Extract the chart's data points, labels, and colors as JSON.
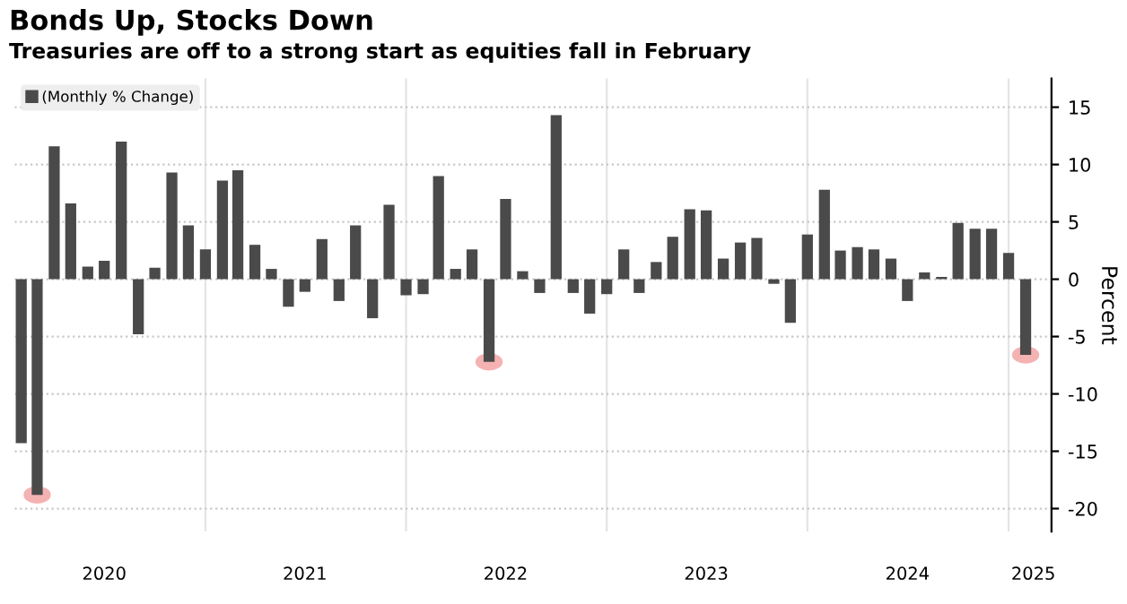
{
  "chart_data": {
    "type": "bar",
    "title": "Bonds Up, Stocks Down",
    "subtitle": "Treasuries are off to a strong start as equities fall in February",
    "ylabel": "Percent",
    "x": [
      "2020-02",
      "2020-03",
      "2020-04",
      "2020-05",
      "2020-06",
      "2020-07",
      "2020-08",
      "2020-09",
      "2020-10",
      "2020-11",
      "2020-12",
      "2021-01",
      "2021-02",
      "2021-03",
      "2021-04",
      "2021-05",
      "2021-06",
      "2021-07",
      "2021-08",
      "2021-09",
      "2021-10",
      "2021-11",
      "2021-12",
      "2022-01",
      "2022-02",
      "2022-03",
      "2022-04",
      "2022-05",
      "2022-06",
      "2022-07",
      "2022-08",
      "2022-09",
      "2022-10",
      "2022-11",
      "2022-12",
      "2023-01",
      "2023-02",
      "2023-03",
      "2023-04",
      "2023-05",
      "2023-06",
      "2023-07",
      "2023-08",
      "2023-09",
      "2023-10",
      "2023-11",
      "2023-12",
      "2024-01",
      "2024-02",
      "2024-03",
      "2024-04",
      "2024-05",
      "2024-06",
      "2024-07",
      "2024-08",
      "2024-09",
      "2024-10",
      "2024-11",
      "2024-12",
      "2025-01",
      "2025-02"
    ],
    "series": [
      {
        "name": "(Monthly % Change)",
        "color": "#4a4a4a",
        "values": [
          -14.3,
          -18.8,
          11.6,
          6.6,
          1.1,
          1.6,
          12.0,
          -4.8,
          1.0,
          9.3,
          4.7,
          2.6,
          8.6,
          9.5,
          3.0,
          0.9,
          -2.4,
          -1.1,
          3.5,
          -1.9,
          4.7,
          -3.4,
          6.5,
          -1.4,
          -1.3,
          9.0,
          0.9,
          2.6,
          -7.2,
          7.0,
          0.7,
          -1.2,
          14.3,
          -1.2,
          -3.0,
          -1.3,
          2.6,
          -1.2,
          1.5,
          3.7,
          6.1,
          6.0,
          1.8,
          3.2,
          3.6,
          -0.4,
          -3.8,
          3.9,
          7.8,
          2.5,
          2.8,
          2.6,
          1.8,
          -1.9,
          0.6,
          0.2,
          4.9,
          4.4,
          4.4,
          2.3,
          -6.6
        ]
      }
    ],
    "xlim": [
      "2020-01-20",
      "2025-03-20"
    ],
    "xticks": [
      {
        "value": "2020-07-01",
        "label": "2020"
      },
      {
        "value": "2021-01-01",
        "label": null
      },
      {
        "value": "2021-07-01",
        "label": "2021"
      },
      {
        "value": "2022-01-01",
        "label": null
      },
      {
        "value": "2022-07-01",
        "label": "2022"
      },
      {
        "value": "2023-01-01",
        "label": null
      },
      {
        "value": "2023-07-01",
        "label": "2023"
      },
      {
        "value": "2024-01-01",
        "label": null
      },
      {
        "value": "2024-07-01",
        "label": "2024"
      },
      {
        "value": "2025-01-01",
        "label": null
      },
      {
        "value": "2025-02-15",
        "label": "2025"
      }
    ],
    "ylim": [
      -22,
      17.5
    ],
    "yticks": [
      -20,
      -15,
      -10,
      -5,
      0,
      5,
      10,
      15
    ],
    "grid": true,
    "legend": "top left"
  }
}
